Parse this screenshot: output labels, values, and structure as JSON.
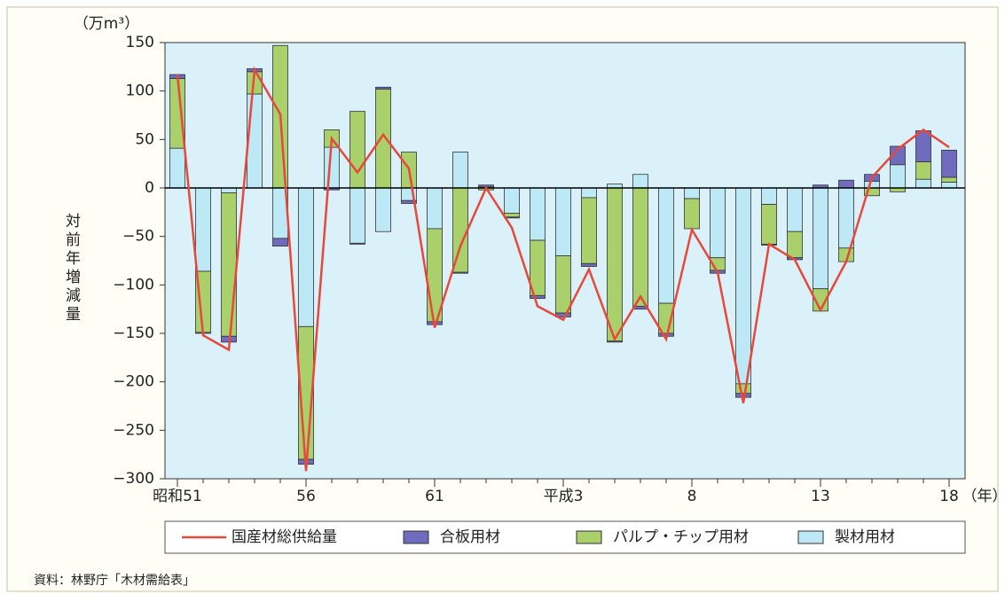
{
  "chart_data": {
    "type": "bar",
    "stacked": true,
    "unit_label": "（万m³）",
    "y_axis_label": "対前年増減量",
    "x_axis_label": "（年）",
    "source": "資料：林野庁「木材需給表」",
    "categories": [
      "昭和51",
      null,
      null,
      null,
      null,
      "56",
      null,
      null,
      null,
      null,
      "61",
      null,
      null,
      null,
      null,
      "平成3",
      null,
      null,
      null,
      null,
      "8",
      null,
      null,
      null,
      null,
      "13",
      null,
      null,
      null,
      null,
      "18"
    ],
    "series": [
      {
        "name": "国産材総供給量",
        "type": "line",
        "color": "#e8483a",
        "values": [
          117,
          -152,
          -167,
          122,
          76,
          -292,
          51,
          16,
          55,
          20,
          -144,
          -60,
          0,
          -41,
          -122,
          -136,
          -84,
          -156,
          -112,
          -156,
          -43,
          -87,
          -222,
          -58,
          -74,
          -126,
          -76,
          11,
          40,
          60,
          42
        ]
      },
      {
        "name": "合板用材",
        "type": "bar",
        "color": "#6f6bbd",
        "values": [
          4,
          -1,
          -6,
          3,
          -8,
          -5,
          -2,
          -1,
          2,
          -3,
          -3,
          -1,
          2,
          -1,
          -3,
          -4,
          -3,
          -1,
          -3,
          -3,
          0,
          -3,
          -4,
          -1,
          -2,
          3,
          8,
          7,
          19,
          32,
          28
        ]
      },
      {
        "name": "パルプ・チップ用材",
        "type": "bar",
        "color": "#a9d06b",
        "values": [
          72,
          -63,
          -148,
          23,
          147,
          -137,
          18,
          79,
          102,
          37,
          -96,
          -87,
          -2,
          -4,
          -57,
          -59,
          -68,
          -158,
          -122,
          -31,
          -31,
          -13,
          -10,
          -41,
          -27,
          -23,
          -14,
          -8,
          -4,
          18,
          5
        ]
      },
      {
        "name": "製材用材",
        "type": "bar",
        "color": "#bde8f6",
        "values": [
          41,
          -86,
          -5,
          97,
          -52,
          -143,
          42,
          -57,
          -45,
          -13,
          -42,
          37,
          1,
          -26,
          -54,
          -70,
          -10,
          4,
          14,
          -119,
          -11,
          -72,
          -202,
          -17,
          -45,
          -104,
          -62,
          7,
          24,
          9,
          6
        ]
      }
    ],
    "ylim": [
      -300,
      150
    ],
    "yticks": [
      {
        "value": -300,
        "label": "−300"
      },
      {
        "value": -250,
        "label": "−250"
      },
      {
        "value": -200,
        "label": "−200"
      },
      {
        "value": -150,
        "label": "−150"
      },
      {
        "value": -100,
        "label": "−100"
      },
      {
        "value": -50,
        "label": "−50"
      },
      0,
      50,
      100,
      150
    ],
    "background": "#daf1f9"
  }
}
